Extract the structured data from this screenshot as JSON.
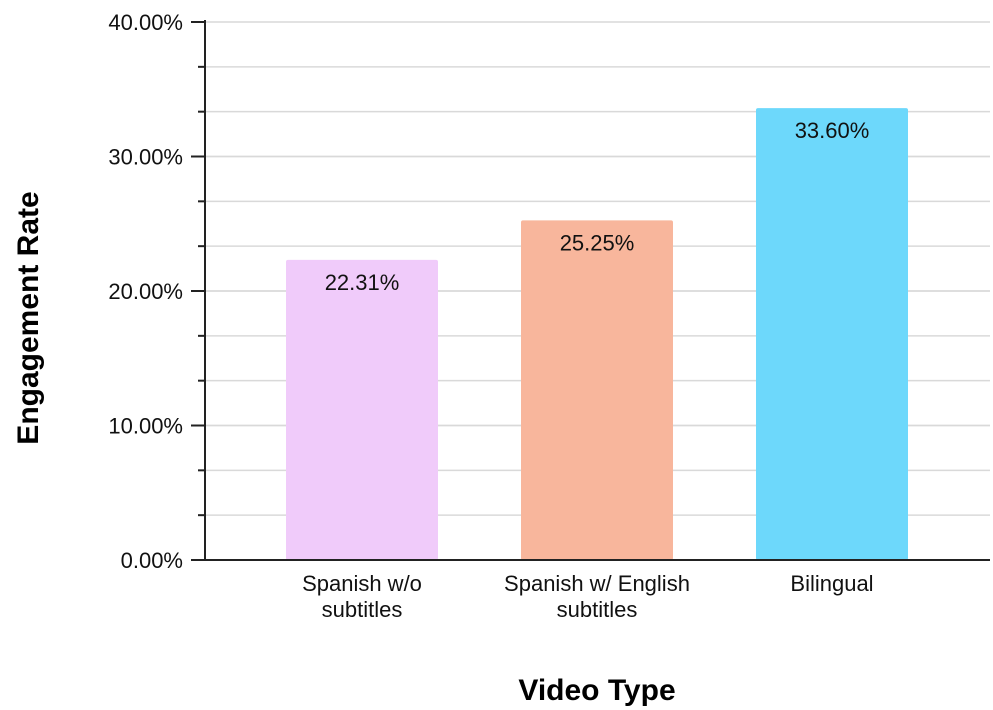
{
  "chart_data": {
    "type": "bar",
    "title": "",
    "xlabel": "Video Type",
    "ylabel": "Engagement Rate",
    "categories": [
      [
        "Spanish w/o",
        "subtitles"
      ],
      [
        "Spanish w/ English",
        "subtitles"
      ],
      [
        "Bilingual"
      ]
    ],
    "values": [
      22.31,
      25.25,
      33.6
    ],
    "data_labels": [
      "22.31%",
      "25.25%",
      "33.60%"
    ],
    "bar_colors": [
      "#f0cbfa",
      "#f8b69c",
      "#6dd8fb"
    ],
    "ylim": [
      0,
      40
    ],
    "y_ticks": [
      0,
      10,
      20,
      30,
      40
    ],
    "y_tick_labels": [
      "0.00%",
      "10.00%",
      "20.00%",
      "30.00%",
      "40.00%"
    ],
    "y_minor_step": 3.3333,
    "grid": true,
    "grid_color": "#d9d9d9",
    "axis_color": "#222222",
    "legend": "none"
  }
}
